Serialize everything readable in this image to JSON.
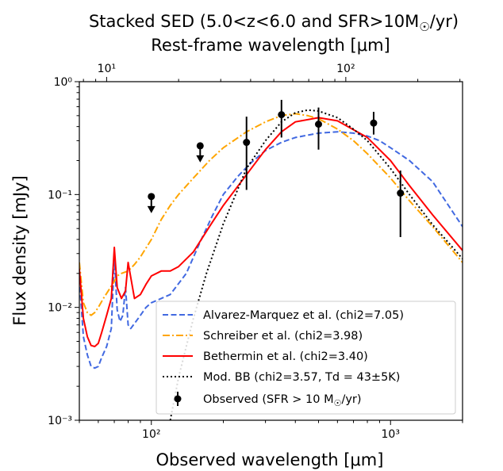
{
  "chart_data": {
    "type": "line",
    "title": "Stacked SED (5.0<z<6.0 and SFR>10M$_\\odot$/yr)",
    "title_parts": {
      "before": "Stacked SED (5.0<z<6.0 and SFR>10M",
      "sun": "☉",
      "after": "/yr)"
    },
    "top_axis_label": "Rest-frame wavelength [μm]",
    "xlabel": "Observed wavelength [μm]",
    "ylabel": "Flux density [mJy]",
    "xscale": "log",
    "yscale": "log",
    "xlim": [
      50,
      2000
    ],
    "ylim": [
      0.001,
      1
    ],
    "top_xlim": [
      7.69,
      307.7
    ],
    "bottom_ticks": [
      {
        "v": 100,
        "label": "10²"
      },
      {
        "v": 1000,
        "label": "10³"
      }
    ],
    "top_ticks": [
      {
        "v": 10,
        "label": "10¹"
      },
      {
        "v": 100,
        "label": "10²"
      }
    ],
    "y_ticks": [
      {
        "v": 0.001,
        "label": "10⁻³"
      },
      {
        "v": 0.01,
        "label": "10⁻²"
      },
      {
        "v": 0.1,
        "label": "10⁻¹"
      },
      {
        "v": 1,
        "label": "10⁰"
      }
    ],
    "legend_position": "lower-right",
    "series": [
      {
        "name": "Alvarez-Marquez et al. (chi2=7.05)",
        "color": "#4169e1",
        "dash": "dashed",
        "x": [
          50,
          52,
          54,
          56,
          58,
          60,
          62,
          65,
          68,
          70,
          72,
          74,
          76,
          78,
          80,
          82,
          85,
          90,
          95,
          100,
          110,
          120,
          140,
          160,
          180,
          200,
          230,
          260,
          300,
          350,
          400,
          500,
          600,
          700,
          800,
          900,
          1000,
          1200,
          1500,
          2000
        ],
        "y": [
          0.018,
          0.0055,
          0.0038,
          0.003,
          0.0029,
          0.003,
          0.0036,
          0.0045,
          0.0065,
          0.028,
          0.0095,
          0.0075,
          0.0085,
          0.015,
          0.007,
          0.0065,
          0.0072,
          0.0085,
          0.01,
          0.011,
          0.012,
          0.013,
          0.02,
          0.038,
          0.065,
          0.1,
          0.145,
          0.19,
          0.245,
          0.29,
          0.32,
          0.35,
          0.36,
          0.35,
          0.33,
          0.3,
          0.26,
          0.2,
          0.13,
          0.052
        ]
      },
      {
        "name": "Schreiber et al. (chi2=3.98)",
        "color": "#ffa500",
        "dash": "dashdot",
        "x": [
          50,
          52,
          54,
          56,
          58,
          60,
          63,
          66,
          70,
          72,
          75,
          80,
          85,
          90,
          100,
          110,
          120,
          130,
          150,
          175,
          200,
          250,
          300,
          350,
          400,
          450,
          500,
          600,
          700,
          800,
          1000,
          1200,
          1500,
          2000
        ],
        "y": [
          0.025,
          0.011,
          0.009,
          0.0085,
          0.009,
          0.01,
          0.012,
          0.014,
          0.017,
          0.019,
          0.02,
          0.021,
          0.024,
          0.028,
          0.04,
          0.06,
          0.08,
          0.1,
          0.14,
          0.2,
          0.26,
          0.36,
          0.44,
          0.5,
          0.52,
          0.5,
          0.47,
          0.38,
          0.3,
          0.23,
          0.14,
          0.088,
          0.052,
          0.025
        ]
      },
      {
        "name": "Bethermin et al. (chi2=3.40)",
        "color": "#ff0000",
        "dash": "solid",
        "x": [
          50,
          52,
          54,
          56,
          58,
          60,
          62,
          65,
          68,
          70,
          72,
          75,
          78,
          80,
          85,
          90,
          95,
          100,
          110,
          120,
          130,
          150,
          175,
          200,
          250,
          300,
          350,
          400,
          500,
          600,
          800,
          1000,
          1200,
          1500,
          2000
        ],
        "y": [
          0.022,
          0.008,
          0.0055,
          0.0046,
          0.0045,
          0.0048,
          0.006,
          0.0085,
          0.012,
          0.034,
          0.015,
          0.012,
          0.014,
          0.025,
          0.012,
          0.013,
          0.016,
          0.019,
          0.021,
          0.021,
          0.023,
          0.031,
          0.052,
          0.08,
          0.15,
          0.25,
          0.36,
          0.44,
          0.48,
          0.45,
          0.32,
          0.2,
          0.12,
          0.066,
          0.032
        ]
      },
      {
        "name": "Mod. BB (chi2=3.57, Td = 43±5K)",
        "color": "#000000",
        "dash": "dotted",
        "x": [
          120,
          130,
          140,
          150,
          170,
          200,
          250,
          300,
          350,
          400,
          450,
          500,
          600,
          700,
          800,
          1000,
          1200,
          1500,
          2000
        ],
        "y": [
          0.001,
          0.0024,
          0.0045,
          0.008,
          0.02,
          0.055,
          0.17,
          0.3,
          0.44,
          0.53,
          0.56,
          0.55,
          0.48,
          0.38,
          0.3,
          0.17,
          0.1,
          0.054,
          0.027
        ]
      }
    ],
    "observed": {
      "name": "Observed (SFR > 10 M☉/yr)",
      "legend_parts": {
        "before": "Observed (SFR > 10 M",
        "sun": "☉",
        "after": "/yr)"
      },
      "color": "#000000",
      "points": [
        {
          "x": 100,
          "y": 0.096,
          "upper_limit": true
        },
        {
          "x": 160,
          "y": 0.27,
          "upper_limit": true
        },
        {
          "x": 250,
          "y": 0.29,
          "ylo": 0.11,
          "yhi": 0.49
        },
        {
          "x": 350,
          "y": 0.51,
          "ylo": 0.32,
          "yhi": 0.69
        },
        {
          "x": 500,
          "y": 0.42,
          "ylo": 0.25,
          "yhi": 0.59
        },
        {
          "x": 850,
          "y": 0.43,
          "ylo": 0.34,
          "yhi": 0.54
        },
        {
          "x": 1100,
          "y": 0.103,
          "ylo": 0.042,
          "yhi": 0.163
        }
      ]
    }
  }
}
